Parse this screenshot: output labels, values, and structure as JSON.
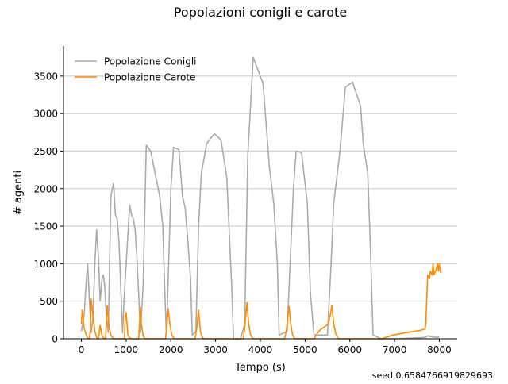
{
  "chart_data": {
    "type": "line",
    "title": "Popolazioni conigli e carote",
    "xlabel": "Tempo (s)",
    "ylabel": "# agenti",
    "xlim": [
      -400,
      8400
    ],
    "ylim": [
      0,
      3900
    ],
    "x_ticks": [
      0,
      1000,
      2000,
      3000,
      4000,
      5000,
      6000,
      7000,
      8000
    ],
    "y_ticks": [
      0,
      500,
      1000,
      1500,
      2000,
      2500,
      3000,
      3500
    ],
    "grid": "horizontal",
    "legend_position": "top-left",
    "footnote": "seed 0.6584766919829693",
    "series": [
      {
        "name": "Popolazione Conigli",
        "color": "#aaaaaa",
        "points": [
          [
            0,
            100
          ],
          [
            60,
            300
          ],
          [
            100,
            700
          ],
          [
            140,
            1000
          ],
          [
            180,
            500
          ],
          [
            220,
            80
          ],
          [
            260,
            300
          ],
          [
            300,
            1000
          ],
          [
            340,
            1450
          ],
          [
            380,
            1100
          ],
          [
            420,
            500
          ],
          [
            460,
            800
          ],
          [
            490,
            850
          ],
          [
            520,
            700
          ],
          [
            560,
            300
          ],
          [
            600,
            80
          ],
          [
            660,
            1900
          ],
          [
            720,
            2070
          ],
          [
            760,
            1650
          ],
          [
            800,
            1600
          ],
          [
            840,
            1300
          ],
          [
            880,
            700
          ],
          [
            920,
            80
          ],
          [
            960,
            600
          ],
          [
            1040,
            1400
          ],
          [
            1080,
            1780
          ],
          [
            1120,
            1650
          ],
          [
            1160,
            1600
          ],
          [
            1200,
            1450
          ],
          [
            1240,
            1100
          ],
          [
            1280,
            600
          ],
          [
            1320,
            80
          ],
          [
            1380,
            700
          ],
          [
            1450,
            2580
          ],
          [
            1550,
            2500
          ],
          [
            1650,
            2200
          ],
          [
            1750,
            1900
          ],
          [
            1820,
            1500
          ],
          [
            1860,
            700
          ],
          [
            1900,
            50
          ],
          [
            1940,
            800
          ],
          [
            2000,
            2000
          ],
          [
            2060,
            2550
          ],
          [
            2180,
            2520
          ],
          [
            2260,
            1900
          ],
          [
            2320,
            1740
          ],
          [
            2380,
            1300
          ],
          [
            2440,
            800
          ],
          [
            2480,
            50
          ],
          [
            2560,
            100
          ],
          [
            2620,
            1500
          ],
          [
            2680,
            2200
          ],
          [
            2800,
            2600
          ],
          [
            2900,
            2680
          ],
          [
            2980,
            2730
          ],
          [
            3120,
            2650
          ],
          [
            3250,
            2150
          ],
          [
            3360,
            700
          ],
          [
            3400,
            0
          ],
          [
            3560,
            0
          ],
          [
            3650,
            200
          ],
          [
            3720,
            2450
          ],
          [
            3840,
            3750
          ],
          [
            4060,
            3400
          ],
          [
            4200,
            2300
          ],
          [
            4300,
            1800
          ],
          [
            4380,
            1000
          ],
          [
            4420,
            50
          ],
          [
            4600,
            100
          ],
          [
            4680,
            1200
          ],
          [
            4740,
            2000
          ],
          [
            4800,
            2500
          ],
          [
            4920,
            2480
          ],
          [
            5050,
            1800
          ],
          [
            5120,
            600
          ],
          [
            5200,
            50
          ],
          [
            5500,
            50
          ],
          [
            5580,
            1000
          ],
          [
            5640,
            1800
          ],
          [
            5780,
            2500
          ],
          [
            5900,
            3350
          ],
          [
            6060,
            3420
          ],
          [
            6240,
            3100
          ],
          [
            6300,
            2600
          ],
          [
            6400,
            2200
          ],
          [
            6460,
            1200
          ],
          [
            6520,
            50
          ],
          [
            6700,
            0
          ],
          [
            7000,
            0
          ],
          [
            7200,
            5
          ],
          [
            7400,
            10
          ],
          [
            7600,
            15
          ],
          [
            7700,
            20
          ],
          [
            7740,
            40
          ],
          [
            7800,
            30
          ],
          [
            7860,
            25
          ],
          [
            7900,
            20
          ],
          [
            7960,
            20
          ],
          [
            8000,
            20
          ]
        ]
      },
      {
        "name": "Popolazione Carote",
        "color": "#ff8c00",
        "points": [
          [
            0,
            200
          ],
          [
            20,
            380
          ],
          [
            60,
            150
          ],
          [
            100,
            60
          ],
          [
            140,
            10
          ],
          [
            180,
            0
          ],
          [
            200,
            120
          ],
          [
            220,
            530
          ],
          [
            260,
            300
          ],
          [
            300,
            100
          ],
          [
            340,
            20
          ],
          [
            380,
            0
          ],
          [
            420,
            180
          ],
          [
            460,
            40
          ],
          [
            500,
            10
          ],
          [
            540,
            0
          ],
          [
            580,
            440
          ],
          [
            620,
            150
          ],
          [
            660,
            50
          ],
          [
            700,
            10
          ],
          [
            740,
            0
          ],
          [
            960,
            0
          ],
          [
            980,
            300
          ],
          [
            1000,
            350
          ],
          [
            1040,
            50
          ],
          [
            1080,
            10
          ],
          [
            1120,
            0
          ],
          [
            1280,
            0
          ],
          [
            1300,
            200
          ],
          [
            1320,
            420
          ],
          [
            1340,
            200
          ],
          [
            1380,
            40
          ],
          [
            1420,
            0
          ],
          [
            1880,
            0
          ],
          [
            1900,
            100
          ],
          [
            1940,
            400
          ],
          [
            1980,
            200
          ],
          [
            2020,
            50
          ],
          [
            2060,
            10
          ],
          [
            2100,
            0
          ],
          [
            2540,
            0
          ],
          [
            2580,
            150
          ],
          [
            2620,
            380
          ],
          [
            2660,
            100
          ],
          [
            2700,
            20
          ],
          [
            2740,
            0
          ],
          [
            3620,
            0
          ],
          [
            3660,
            200
          ],
          [
            3700,
            480
          ],
          [
            3740,
            200
          ],
          [
            3780,
            50
          ],
          [
            3820,
            10
          ],
          [
            3860,
            0
          ],
          [
            4540,
            0
          ],
          [
            4580,
            100
          ],
          [
            4640,
            430
          ],
          [
            4680,
            200
          ],
          [
            4720,
            50
          ],
          [
            4760,
            10
          ],
          [
            4800,
            0
          ],
          [
            5200,
            0
          ],
          [
            5260,
            60
          ],
          [
            5340,
            120
          ],
          [
            5440,
            160
          ],
          [
            5520,
            200
          ],
          [
            5560,
            300
          ],
          [
            5600,
            450
          ],
          [
            5640,
            200
          ],
          [
            5680,
            80
          ],
          [
            5720,
            20
          ],
          [
            5760,
            0
          ],
          [
            6700,
            0
          ],
          [
            6820,
            20
          ],
          [
            6960,
            50
          ],
          [
            7100,
            65
          ],
          [
            7240,
            80
          ],
          [
            7400,
            95
          ],
          [
            7560,
            110
          ],
          [
            7680,
            130
          ],
          [
            7700,
            200
          ],
          [
            7720,
            550
          ],
          [
            7740,
            850
          ],
          [
            7780,
            800
          ],
          [
            7800,
            900
          ],
          [
            7840,
            850
          ],
          [
            7860,
            1000
          ],
          [
            7880,
            850
          ],
          [
            7900,
            880
          ],
          [
            7920,
            900
          ],
          [
            7940,
            950
          ],
          [
            7960,
            1000
          ],
          [
            7980,
            900
          ],
          [
            8000,
            1000
          ],
          [
            8020,
            900
          ],
          [
            8040,
            880
          ]
        ]
      }
    ]
  }
}
